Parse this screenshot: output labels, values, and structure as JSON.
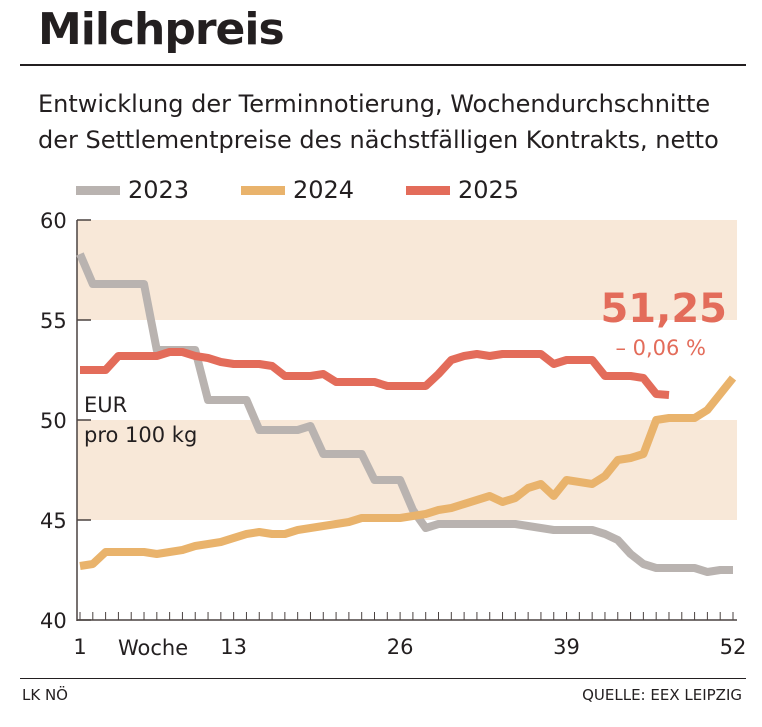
{
  "header": {
    "title": "Milchpreis",
    "subtitle_line1": "Entwicklung der Terminnotierung, Wochendurchschnitte",
    "subtitle_line2": "der Settlementpreise des nächstfälligen Kontrakts, netto"
  },
  "footer": {
    "left": "LK NÖ",
    "right": "QUELLE: EEX LEIPZIG"
  },
  "chart_data": {
    "type": "line",
    "title": "Milchpreis",
    "xlabel": "Woche",
    "ylabel": "EUR pro 100 kg",
    "ylabel_line1": "EUR",
    "ylabel_line2": "pro 100 kg",
    "xlim": [
      1,
      52
    ],
    "ylim": [
      40,
      60
    ],
    "x_ticks": [
      "1",
      "13",
      "26",
      "39",
      "52"
    ],
    "y_ticks": [
      "40",
      "45",
      "50",
      "55",
      "60"
    ],
    "legend_position": "top",
    "bands": [
      [
        45,
        50
      ],
      [
        55,
        60
      ]
    ],
    "band_color": "#f8e8d8",
    "annotation_value": "51,25",
    "annotation_change": "– 0,06 %",
    "series": [
      {
        "name": "2023",
        "color": "#b9b3b0",
        "values": [
          58.3,
          56.8,
          56.8,
          56.8,
          56.8,
          56.8,
          53.5,
          53.5,
          53.5,
          53.5,
          51,
          51,
          51,
          51,
          49.5,
          49.5,
          49.5,
          49.5,
          49.7,
          48.3,
          48.3,
          48.3,
          48.3,
          47,
          47,
          47,
          45.5,
          44.6,
          44.8,
          44.8,
          44.8,
          44.8,
          44.8,
          44.8,
          44.8,
          44.7,
          44.6,
          44.5,
          44.5,
          44.5,
          44.5,
          44.3,
          44.0,
          43.3,
          42.8,
          42.6,
          42.6,
          42.6,
          42.6,
          42.4,
          42.5,
          42.5
        ]
      },
      {
        "name": "2024",
        "color": "#e9b36c",
        "values": [
          42.7,
          42.8,
          43.4,
          43.4,
          43.4,
          43.4,
          43.3,
          43.4,
          43.5,
          43.7,
          43.8,
          43.9,
          44.1,
          44.3,
          44.4,
          44.3,
          44.3,
          44.5,
          44.6,
          44.7,
          44.8,
          44.9,
          45.1,
          45.1,
          45.1,
          45.1,
          45.2,
          45.3,
          45.5,
          45.6,
          45.8,
          46.0,
          46.2,
          45.9,
          46.1,
          46.6,
          46.8,
          46.2,
          47.0,
          46.9,
          46.8,
          47.2,
          48.0,
          48.1,
          48.3,
          50.0,
          50.1,
          50.1,
          50.1,
          50.5,
          51.3,
          52.1
        ]
      },
      {
        "name": "2025",
        "color": "#e36c5a",
        "values": [
          52.5,
          52.5,
          52.5,
          53.2,
          53.2,
          53.2,
          53.2,
          53.4,
          53.4,
          53.2,
          53.1,
          52.9,
          52.8,
          52.8,
          52.8,
          52.7,
          52.2,
          52.2,
          52.2,
          52.3,
          51.9,
          51.9,
          51.9,
          51.9,
          51.7,
          51.7,
          51.7,
          51.7,
          52.3,
          53.0,
          53.2,
          53.3,
          53.2,
          53.3,
          53.3,
          53.3,
          53.3,
          52.8,
          53.0,
          53.0,
          53.0,
          52.2,
          52.2,
          52.2,
          52.1,
          51.3,
          51.25
        ]
      }
    ]
  }
}
